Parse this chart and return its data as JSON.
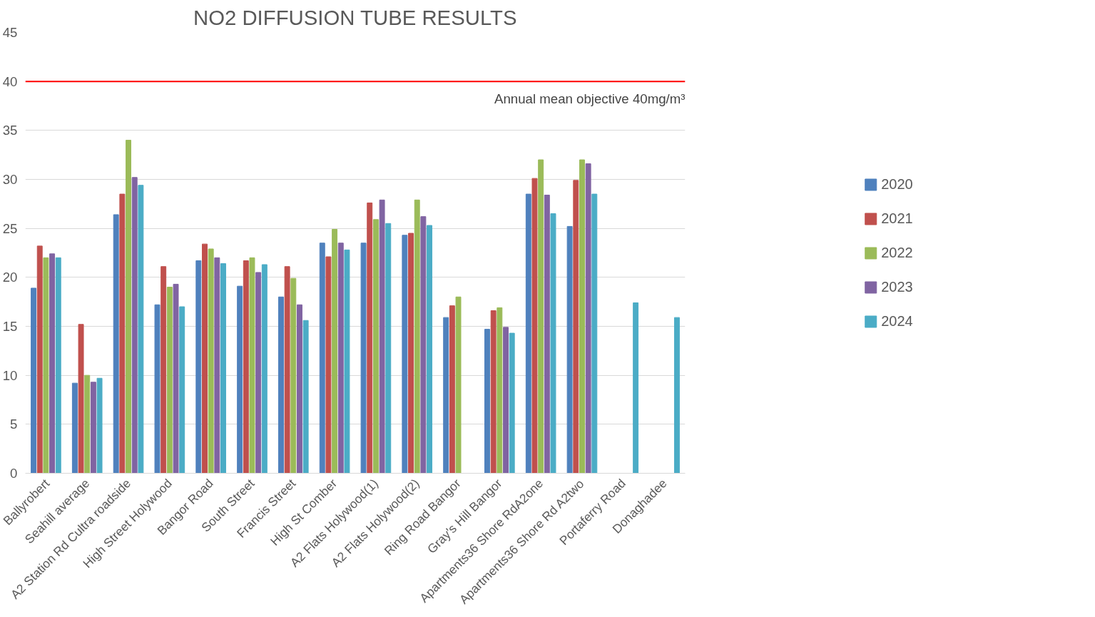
{
  "chart_data": {
    "type": "bar",
    "title": "NO2 DIFFUSION TUBE RESULTS",
    "categories": [
      "Ballyrobert",
      "Seahill average",
      "A2 Station Rd Cultra roadside",
      "High Street Holywood",
      "Bangor Road",
      "South Street",
      "Francis Street",
      "High St Comber",
      "A2 Flats Holywood(1)",
      "A2 Flats Holywood(2)",
      "Ring Road Bangor",
      "Gray's Hill Bangor",
      "Apartments36 Shore RdA2one",
      "Apartments36 Shore Rd A2two",
      "Portaferry Road",
      "Donaghadee"
    ],
    "series": [
      {
        "name": "2020",
        "color": "#4f81bd",
        "values": [
          18.9,
          9.2,
          26.4,
          17.2,
          21.7,
          19.1,
          18.0,
          23.5,
          23.5,
          24.3,
          15.9,
          14.7,
          28.5,
          25.2,
          null,
          null
        ]
      },
      {
        "name": "2021",
        "color": "#c0504d",
        "values": [
          23.2,
          15.2,
          28.5,
          21.1,
          23.4,
          21.7,
          21.1,
          22.1,
          27.6,
          24.5,
          17.1,
          16.6,
          30.1,
          29.9,
          null,
          null
        ]
      },
      {
        "name": "2022",
        "color": "#9bbb59",
        "values": [
          22.0,
          10.0,
          34.0,
          19.0,
          22.9,
          22.0,
          19.9,
          24.9,
          25.9,
          27.9,
          18.0,
          16.9,
          32.0,
          32.0,
          null,
          null
        ]
      },
      {
        "name": "2023",
        "color": "#8064a2",
        "values": [
          22.4,
          9.3,
          30.2,
          19.3,
          22.0,
          20.5,
          17.2,
          23.5,
          27.9,
          26.2,
          null,
          14.9,
          28.4,
          31.6,
          null,
          null
        ]
      },
      {
        "name": "2024",
        "color": "#4bacc6",
        "values": [
          22.0,
          9.7,
          29.4,
          17.0,
          21.4,
          21.3,
          15.6,
          22.8,
          25.5,
          25.3,
          null,
          14.3,
          26.5,
          28.5,
          17.4,
          15.9
        ]
      }
    ],
    "ylim": [
      0,
      45
    ],
    "yticks": [
      0,
      5,
      10,
      15,
      20,
      25,
      30,
      35,
      40,
      45
    ],
    "grid": "y",
    "legend": "right",
    "ref_lines": [
      {
        "axis": "y",
        "value": 40,
        "label": "Annual mean objective 40mg/m³",
        "color": "#ff0000"
      }
    ]
  }
}
